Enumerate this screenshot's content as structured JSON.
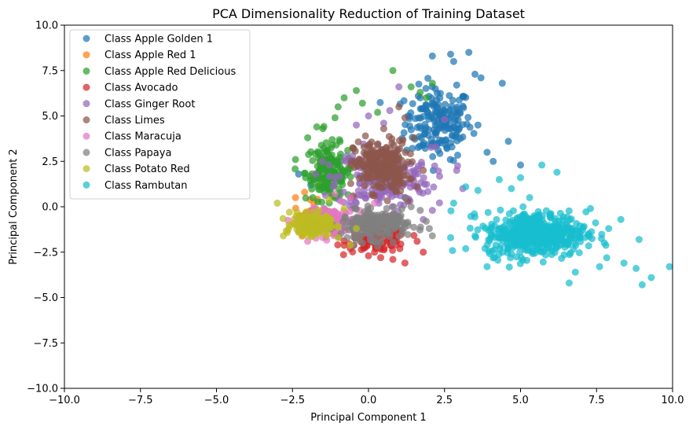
{
  "chart_data": {
    "type": "scatter",
    "title": "PCA Dimensionality Reduction of Training Dataset",
    "xlabel": "Principal Component 1",
    "ylabel": "Principal Component 2",
    "xlim": [
      -10,
      10
    ],
    "ylim": [
      -10,
      10
    ],
    "xticks": [
      "−10.0",
      "−7.5",
      "−5.0",
      "−2.5",
      "0.0",
      "2.5",
      "5.0",
      "7.5",
      "10.0"
    ],
    "yticks": [
      "−10.0",
      "−7.5",
      "−5.0",
      "−2.5",
      "0.0",
      "2.5",
      "5.0",
      "7.5",
      "10.0"
    ],
    "grid": false,
    "legend_position": "top-left",
    "series": [
      {
        "name": "Class Apple Golden 1",
        "color": "#1f77b4",
        "center": [
          2.3,
          4.6
        ],
        "spread": [
          1.0,
          1.8
        ],
        "count": 180,
        "x": [
          2.1,
          2.7,
          2.8,
          3.3,
          3.5,
          3.7,
          4.4,
          2.9,
          2.2,
          4.6,
          5.0,
          1.7,
          1.9,
          3.0,
          2.4,
          3.6,
          3.9,
          4.1,
          1.3,
          -2.3,
          -1.9
        ],
        "y": [
          8.3,
          8.4,
          8.0,
          8.5,
          7.3,
          7.1,
          6.8,
          6.7,
          6.5,
          3.6,
          2.3,
          6.0,
          5.6,
          5.2,
          4.8,
          4.5,
          3.0,
          2.5,
          5.0,
          1.8,
          1.2
        ]
      },
      {
        "name": "Class Apple Red 1",
        "color": "#ff7f0e",
        "center": [
          -1.9,
          -0.6
        ],
        "spread": [
          0.5,
          0.8
        ],
        "count": 40,
        "x": [
          -2.1,
          -1.6,
          -1.2,
          -2.4,
          -1.8
        ],
        "y": [
          0.8,
          1.2,
          0.6,
          0.5,
          0.2
        ]
      },
      {
        "name": "Class Apple Red Delicious",
        "color": "#2ca02c",
        "center": [
          -1.3,
          1.9
        ],
        "spread": [
          0.7,
          1.4
        ],
        "count": 170,
        "x": [
          0.8,
          1.4,
          1.7,
          -0.4,
          -0.8,
          2.1,
          1.9,
          -1.0,
          -1.7,
          -2.0,
          -1.5,
          -2.4,
          -0.2,
          0.3,
          -1.1
        ],
        "y": [
          7.5,
          6.6,
          6.3,
          6.4,
          6.0,
          6.8,
          6.0,
          5.5,
          4.4,
          3.8,
          4.3,
          2.6,
          5.7,
          5.2,
          4.9
        ]
      },
      {
        "name": "Class Avocado",
        "color": "#d62728",
        "center": [
          0.3,
          -1.8
        ],
        "spread": [
          0.9,
          0.6
        ],
        "count": 110,
        "x": [
          0.0,
          0.4,
          0.8,
          1.2,
          1.8,
          1.6,
          0.2,
          -0.6,
          0.9
        ],
        "y": [
          -2.7,
          -2.8,
          -2.9,
          -3.1,
          -2.5,
          -1.9,
          -2.5,
          -2.3,
          -2.1
        ]
      },
      {
        "name": "Class Ginger Root",
        "color": "#9467bd",
        "center": [
          0.5,
          1.6
        ],
        "spread": [
          1.4,
          1.5
        ],
        "count": 230,
        "x": [
          1.0,
          2.5,
          2.2,
          -0.4,
          0.0,
          0.5,
          2.9,
          3.1,
          1.8,
          -1.3,
          1.2,
          2.1,
          0.7
        ],
        "y": [
          6.6,
          4.8,
          3.3,
          4.5,
          5.0,
          4.6,
          2.0,
          1.0,
          -0.7,
          2.3,
          0.5,
          -0.2,
          5.3
        ]
      },
      {
        "name": "Class Limes",
        "color": "#8c564b",
        "center": [
          0.4,
          2.2
        ],
        "spread": [
          0.8,
          1.3
        ],
        "count": 220,
        "x": [
          1.0,
          1.2,
          0.5,
          0.3,
          -0.2,
          1.5,
          1.8,
          0.8,
          -0.5,
          1.3,
          0.0,
          0.7,
          1.6,
          -0.1
        ],
        "y": [
          5.5,
          4.9,
          4.3,
          3.4,
          2.3,
          3.8,
          2.0,
          1.2,
          0.6,
          0.3,
          -0.3,
          -0.5,
          1.1,
          3.9
        ]
      },
      {
        "name": "Class Maracuja",
        "color": "#e377c2",
        "center": [
          -1.2,
          -0.8
        ],
        "spread": [
          0.7,
          0.6
        ],
        "count": 140,
        "x": [
          -0.9,
          -0.6,
          -0.3,
          -1.5,
          -2.0,
          -1.1,
          -0.4,
          0.2
        ],
        "y": [
          0.3,
          0.5,
          -0.2,
          -1.7,
          -1.9,
          0.7,
          -1.3,
          0.2
        ]
      },
      {
        "name": "Class Papaya",
        "color": "#7f7f7f",
        "center": [
          0.2,
          -1.0
        ],
        "spread": [
          1.0,
          0.7
        ],
        "count": 200,
        "x": [
          0.9,
          1.4,
          1.9,
          2.0,
          2.1,
          -0.2,
          0.3,
          1.7,
          0.6,
          -0.7,
          1.2
        ],
        "y": [
          -0.5,
          0.0,
          -0.8,
          -1.2,
          -1.6,
          -2.0,
          -2.2,
          -0.2,
          -0.1,
          -1.7,
          0.5
        ]
      },
      {
        "name": "Class Potato Red",
        "color": "#bcbd22",
        "center": [
          -1.9,
          -1.0
        ],
        "spread": [
          0.55,
          0.5
        ],
        "count": 230,
        "x": [
          -3.0,
          -2.8,
          -1.3,
          -1.0,
          -0.6,
          -2.6,
          -0.8,
          -0.4
        ],
        "y": [
          0.2,
          -1.6,
          0.4,
          -1.7,
          -2.1,
          -0.3,
          -0.1,
          -1.2
        ]
      },
      {
        "name": "Class Rambutan",
        "color": "#17becf",
        "center": [
          5.5,
          -1.5
        ],
        "spread": [
          1.5,
          1.1
        ],
        "count": 480,
        "x": [
          9.9,
          9.3,
          9.0,
          8.9,
          8.8,
          8.4,
          8.3,
          7.6,
          7.3,
          6.8,
          5.7,
          5.0,
          4.7,
          4.3,
          3.6,
          3.2,
          2.8,
          2.7,
          3.9,
          6.2,
          7.9,
          6.6,
          5.3
        ],
        "y": [
          -3.3,
          -3.9,
          -4.3,
          -1.8,
          -3.4,
          -3.1,
          -0.7,
          -3.3,
          -0.1,
          -3.6,
          2.3,
          1.6,
          1.0,
          1.5,
          0.9,
          1.1,
          0.2,
          -1.7,
          -3.3,
          1.9,
          -1.2,
          -4.2,
          0.5
        ]
      }
    ]
  }
}
